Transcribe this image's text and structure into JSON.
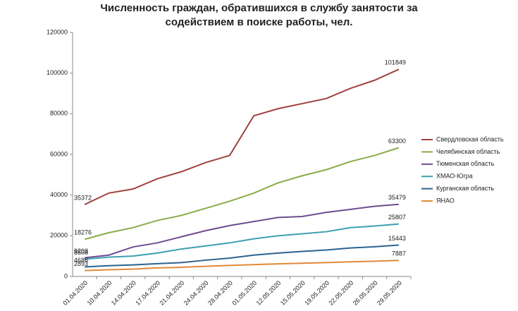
{
  "chart_data": {
    "type": "line",
    "title": "Численность граждан, обратившихся в службу занятости за содействием в поиске работы, чел.",
    "categories": [
      "01.04.2020",
      "10.04.2020",
      "14.04.2020",
      "17.04.2020",
      "21.04.2020",
      "24.04.2020",
      "28.04.2020",
      "01.05.2020",
      "12.05.2020",
      "15.05.2020",
      "19.05.2020",
      "22.05.2020",
      "26.05.2020",
      "29.05.2020"
    ],
    "series": [
      {
        "name": "Свердловская область",
        "color": "#a0413d",
        "values": [
          35372,
          41000,
          43000,
          48000,
          51500,
          56000,
          59500,
          79000,
          82500,
          85000,
          87500,
          92500,
          96500,
          101849
        ]
      },
      {
        "name": "Челябинская область",
        "color": "#8bab4a",
        "values": [
          18276,
          21500,
          24000,
          27500,
          30000,
          33500,
          37000,
          41000,
          46000,
          49500,
          52500,
          56500,
          59500,
          63300
        ]
      },
      {
        "name": "Тюменская область",
        "color": "#6e4c8f",
        "values": [
          9203,
          10500,
          14500,
          16500,
          19500,
          22500,
          25000,
          27000,
          29000,
          29500,
          31500,
          33000,
          34500,
          35479
        ]
      },
      {
        "name": "ХМАО-Югра",
        "color": "#3d9fb1",
        "values": [
          8508,
          9500,
          10000,
          11500,
          13500,
          15000,
          16500,
          18500,
          20000,
          21000,
          22000,
          24000,
          24800,
          25807
        ]
      },
      {
        "name": "Курганская область",
        "color": "#2c6390",
        "values": [
          4686,
          5300,
          5700,
          6300,
          6800,
          8000,
          9000,
          10500,
          11500,
          12300,
          13000,
          14000,
          14600,
          15443
        ]
      },
      {
        "name": "ЯНАО",
        "color": "#e08a3a",
        "values": [
          2893,
          3300,
          3600,
          4200,
          4500,
          5000,
          5400,
          5800,
          6200,
          6500,
          6800,
          7200,
          7500,
          7887
        ]
      }
    ],
    "ylim": [
      0,
      120000
    ],
    "yticks": [
      0,
      20000,
      40000,
      60000,
      80000,
      100000,
      120000
    ],
    "grid": false,
    "legend": "right"
  }
}
